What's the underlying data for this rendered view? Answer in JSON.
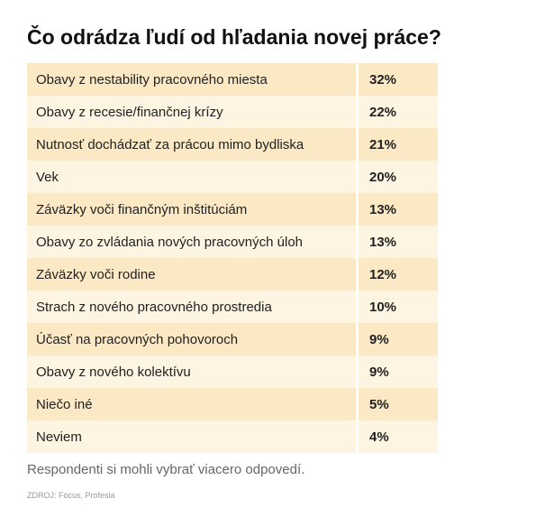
{
  "title": "Čo odrádza ľudí od hľadania novej práce?",
  "table": {
    "rows": [
      [
        "Obavy z nestability pracovného miesta",
        "32%"
      ],
      [
        "Obavy z recesie/finančnej krízy",
        "22%"
      ],
      [
        "Nutnosť dochádzať za prácou mimo bydliska",
        "21%"
      ],
      [
        "Vek",
        "20%"
      ],
      [
        "Záväzky voči finančným inštitúciám",
        "13%"
      ],
      [
        "Obavy zo zvládania nových pracovných úloh",
        "13%"
      ],
      [
        "Záväzky voči rodine",
        "12%"
      ],
      [
        "Strach z nového pracovného prostredia",
        "10%"
      ],
      [
        "Účasť na pracovných pohovoroch",
        "9%"
      ],
      [
        "Obavy z nového kolektívu",
        "9%"
      ],
      [
        "Niečo iné",
        "5%"
      ],
      [
        "Neviem",
        "4%"
      ]
    ]
  },
  "note": "Respondenti si mohli vybrať viacero odpovedí.",
  "source": "ZDROJ: Focus, Profesia"
}
